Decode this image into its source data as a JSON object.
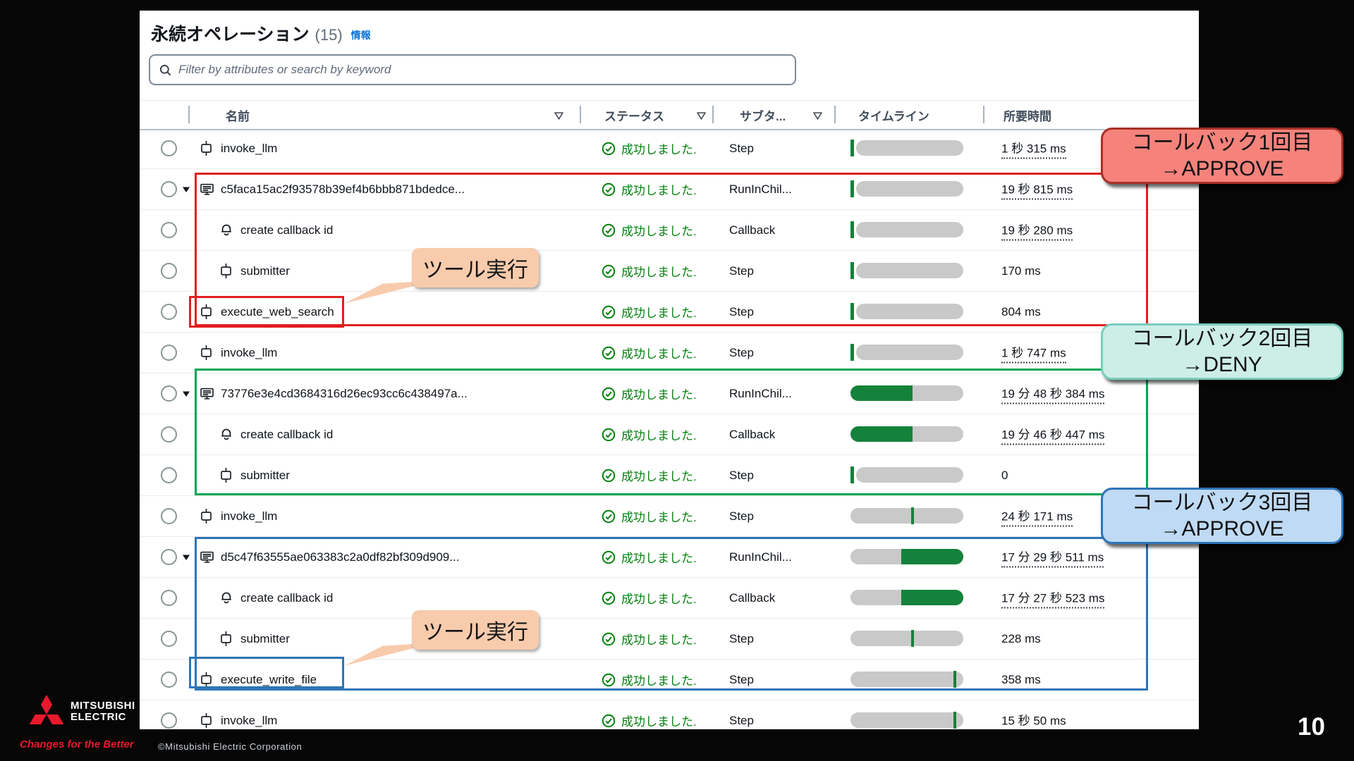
{
  "page": {
    "title": "永続オペレーション",
    "count": "(15)",
    "info_label": "情報",
    "page_number": "10",
    "footer_copyright": "©Mitsubishi Electric Corporation",
    "brand": {
      "name_line1": "MITSUBISHI",
      "name_line2": "ELECTRIC",
      "tagline": "Changes for the Better"
    }
  },
  "search": {
    "placeholder": "Filter by attributes or search by keyword"
  },
  "table": {
    "columns": {
      "name": "名前",
      "status": "ステータス",
      "subtype": "サブタ...",
      "timeline": "タイムライン",
      "duration": "所要時間"
    },
    "status_ok": "成功しました.",
    "rows": [
      {
        "name": "invoke_llm",
        "icon": "step",
        "indent": 0,
        "expand": false,
        "subtype": "Step",
        "duration": "1 秒 315 ms",
        "dotted": true,
        "timeline": "tick-left"
      },
      {
        "name": "c5faca15ac2f93578b39ef4b6bbb871bdedce...",
        "icon": "machine",
        "indent": 0,
        "expand": true,
        "subtype": "RunInChil...",
        "duration": "19 秒 815 ms",
        "dotted": true,
        "timeline": "tick-left"
      },
      {
        "name": "create callback id",
        "icon": "callback",
        "indent": 1,
        "expand": false,
        "subtype": "Callback",
        "duration": "19 秒 280 ms",
        "dotted": true,
        "timeline": "tick-left"
      },
      {
        "name": "submitter",
        "icon": "step",
        "indent": 1,
        "expand": false,
        "subtype": "Step",
        "duration": "170 ms",
        "dotted": false,
        "timeline": "tick-left"
      },
      {
        "name": "execute_web_search",
        "icon": "step",
        "indent": 0,
        "expand": false,
        "subtype": "Step",
        "duration": "804 ms",
        "dotted": false,
        "timeline": "tick-left"
      },
      {
        "name": "invoke_llm",
        "icon": "step",
        "indent": 0,
        "expand": false,
        "subtype": "Step",
        "duration": "1 秒 747 ms",
        "dotted": true,
        "timeline": "tick-left"
      },
      {
        "name": "73776e3e4cd3684316d26ec93cc6c438497a...",
        "icon": "machine",
        "indent": 0,
        "expand": true,
        "subtype": "RunInChil...",
        "duration": "19 分 48 秒 384 ms",
        "dotted": true,
        "timeline": "fill-left"
      },
      {
        "name": "create callback id",
        "icon": "callback",
        "indent": 1,
        "expand": false,
        "subtype": "Callback",
        "duration": "19 分 46 秒 447 ms",
        "dotted": true,
        "timeline": "fill-left"
      },
      {
        "name": "submitter",
        "icon": "step",
        "indent": 1,
        "expand": false,
        "subtype": "Step",
        "duration": "0",
        "dotted": false,
        "timeline": "tick-left"
      },
      {
        "name": "invoke_llm",
        "icon": "step",
        "indent": 0,
        "expand": false,
        "subtype": "Step",
        "duration": "24 秒 171 ms",
        "dotted": true,
        "timeline": "tick-mid"
      },
      {
        "name": "d5c47f63555ae063383c2a0df82bf309d909...",
        "icon": "machine",
        "indent": 0,
        "expand": true,
        "subtype": "RunInChil...",
        "duration": "17 分 29 秒 511 ms",
        "dotted": true,
        "timeline": "fill-right"
      },
      {
        "name": "create callback id",
        "icon": "callback",
        "indent": 1,
        "expand": false,
        "subtype": "Callback",
        "duration": "17 分 27 秒 523 ms",
        "dotted": true,
        "timeline": "fill-right"
      },
      {
        "name": "submitter",
        "icon": "step",
        "indent": 1,
        "expand": false,
        "subtype": "Step",
        "duration": "228 ms",
        "dotted": false,
        "timeline": "tick-mid"
      },
      {
        "name": "execute_write_file",
        "icon": "step",
        "indent": 0,
        "expand": false,
        "subtype": "Step",
        "duration": "358 ms",
        "dotted": false,
        "timeline": "tick-right"
      },
      {
        "name": "invoke_llm",
        "icon": "step",
        "indent": 0,
        "expand": false,
        "subtype": "Step",
        "duration": "15 秒 50 ms",
        "dotted": true,
        "timeline": "tick-right"
      }
    ]
  },
  "annotations": {
    "tool_label_1": "ツール実行",
    "tool_label_2": "ツール実行",
    "callouts": [
      {
        "line1": "コールバック1回目",
        "line2": "→APPROVE",
        "theme": "red"
      },
      {
        "line1": "コールバック2回目",
        "line2": "→DENY",
        "theme": "teal"
      },
      {
        "line1": "コールバック3回目",
        "line2": "→APPROVE",
        "theme": "blue"
      }
    ],
    "colors": {
      "group_box_1": "#e02020",
      "group_box_2": "#00a651",
      "group_box_3": "#2e75b6",
      "callout_red_fill": "#f5837c",
      "callout_teal_fill": "#cdeee7",
      "callout_blue_fill": "#bfdaf4",
      "tool_bubble_fill": "#f8cbad",
      "status_green": "#037f0c",
      "timeline_green": "#15823b",
      "timeline_gray": "#c9c9c9"
    }
  }
}
